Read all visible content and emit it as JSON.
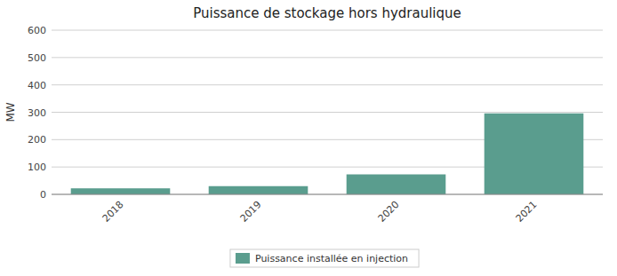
{
  "chart_data": {
    "type": "bar",
    "title": "Puissance de stockage hors hydraulique",
    "categories": [
      "2018",
      "2019",
      "2020",
      "2021"
    ],
    "series": [
      {
        "name": "Puissance installée en injection",
        "color": "#5a9d8e",
        "values": [
          22,
          30,
          73,
          296
        ]
      }
    ],
    "ylabel": "MW",
    "ylim": [
      0,
      600
    ],
    "yticks": [
      0,
      100,
      200,
      300,
      400,
      500,
      600
    ],
    "grid": true,
    "legend": "bottom"
  }
}
